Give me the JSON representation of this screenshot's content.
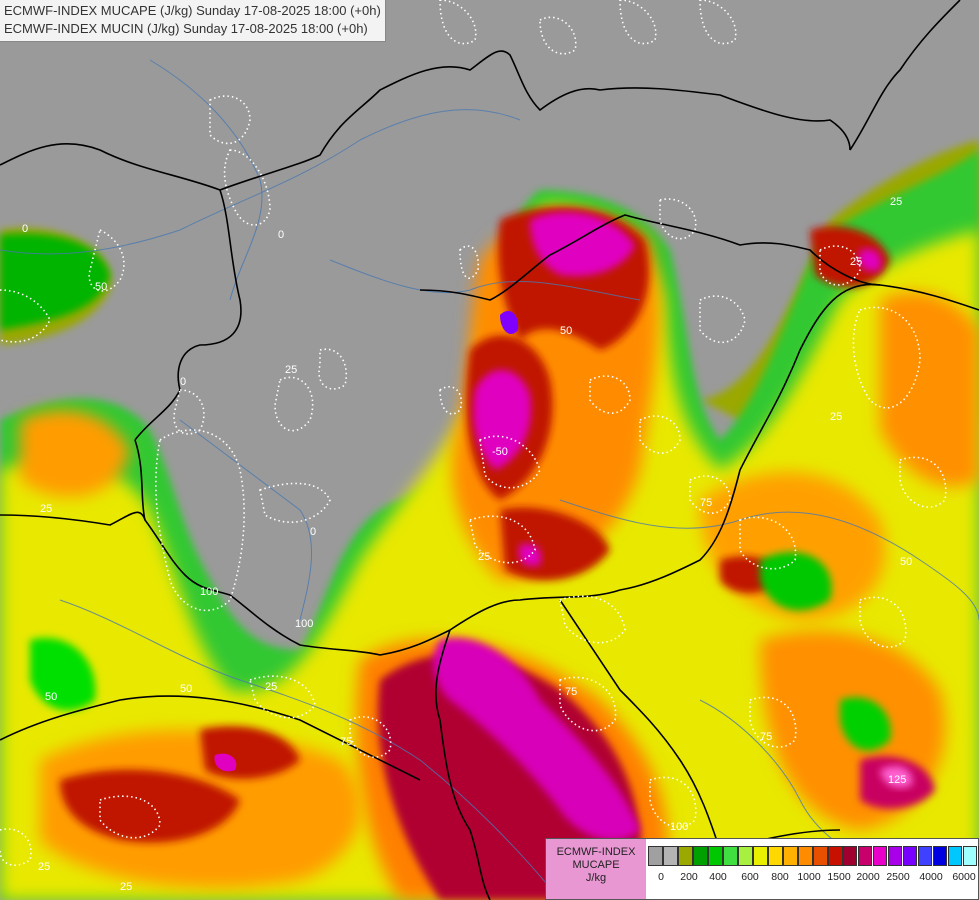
{
  "title": {
    "line1": "ECMWF-INDEX MUCAPE (J/kg) Sunday 17-08-2025 18:00 (+0h)",
    "line2": "ECMWF-INDEX MUCIN (J/kg) Sunday 17-08-2025 18:00 (+0h)"
  },
  "legend": {
    "line1": "ECMWF-INDEX",
    "line2": "MUCAPE",
    "line3": "J/kg",
    "colors": [
      "#a0a0a0",
      "#b4b4b4",
      "#9aa800",
      "#00a000",
      "#00c800",
      "#40e040",
      "#a8f040",
      "#e8f000",
      "#ffd800",
      "#ffb000",
      "#ff8c00",
      "#e85000",
      "#c81000",
      "#a00030",
      "#c8006c",
      "#e800c8",
      "#a800e8",
      "#7800ff",
      "#4040ff",
      "#0000e0",
      "#00c8ff",
      "#a0ffff",
      "#ffffff"
    ],
    "ticks": [
      "0",
      "200",
      "400",
      "600",
      "800",
      "1000",
      "1500",
      "2000",
      "2500",
      "4000",
      "6000"
    ]
  },
  "map_labels": [
    "0",
    "0",
    "0",
    "0",
    "25",
    "50",
    "50",
    "25",
    "25",
    "75",
    "50",
    "100",
    "25",
    "50",
    "25",
    "75",
    "125",
    "75",
    "75",
    "100",
    "50",
    "25",
    "25",
    "100",
    "75",
    "50",
    "25"
  ]
}
